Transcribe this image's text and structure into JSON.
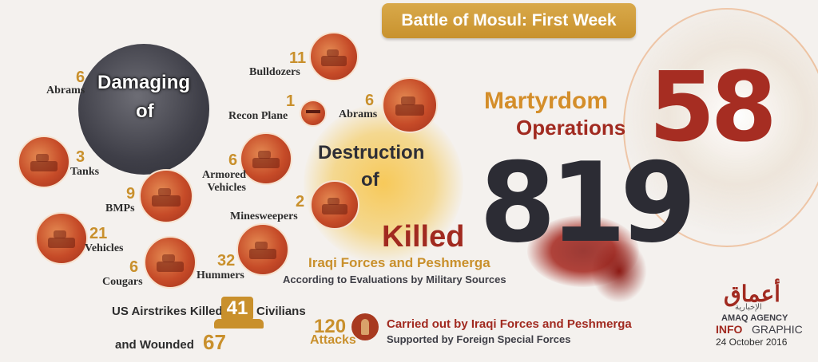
{
  "title": "Battle of Mosul: First Week",
  "damaging": {
    "label_line1": "Damaging",
    "label_line2": "of",
    "abrams_count": "6",
    "abrams_label": "Abrams"
  },
  "destruction": {
    "label_line1": "Destruction",
    "label_line2": "of",
    "items": [
      {
        "count": "11",
        "label": "Bulldozers"
      },
      {
        "count": "1",
        "label": "Recon Plane"
      },
      {
        "count": "6",
        "label": "Abrams"
      },
      {
        "count": "3",
        "label": "Tanks"
      },
      {
        "count": "6",
        "label": "Armored Vehicles"
      },
      {
        "count": "9",
        "label": "BMPs"
      },
      {
        "count": "2",
        "label": "Minesweepers"
      },
      {
        "count": "21",
        "label": "Vehicles"
      },
      {
        "count": "6",
        "label": "Cougars"
      },
      {
        "count": "32",
        "label": "Hummers"
      }
    ]
  },
  "martyrdom": {
    "line1": "Martyrdom",
    "line2": "Operations",
    "count": "58"
  },
  "killed": {
    "label": "Killed",
    "count": "819",
    "forces": "Iraqi Forces and Peshmerga",
    "source": "According to Evaluations by Military Sources"
  },
  "airstrikes": {
    "prefix": "US Airstrikes Killed",
    "killed_count": "41",
    "suffix": "Civilians",
    "wounded_prefix": "and Wounded",
    "wounded_count": "67"
  },
  "attacks": {
    "count": "120",
    "label": "Attacks",
    "carried_by": "Carried out by Iraqi Forces and Peshmerga",
    "supported_by": "Supported by Foreign Special Forces"
  },
  "logo": {
    "arabic": "أعماق",
    "arabic_sub": "الإخبارية",
    "agency": "AMAQ AGENCY",
    "info_a": "INFO",
    "info_b": "GRAPHIC",
    "date": "24 October 2016"
  },
  "colors": {
    "gold": "#c9902c",
    "red": "#a12a20",
    "dark": "#2c2c34",
    "banner": "#d9a94a"
  }
}
